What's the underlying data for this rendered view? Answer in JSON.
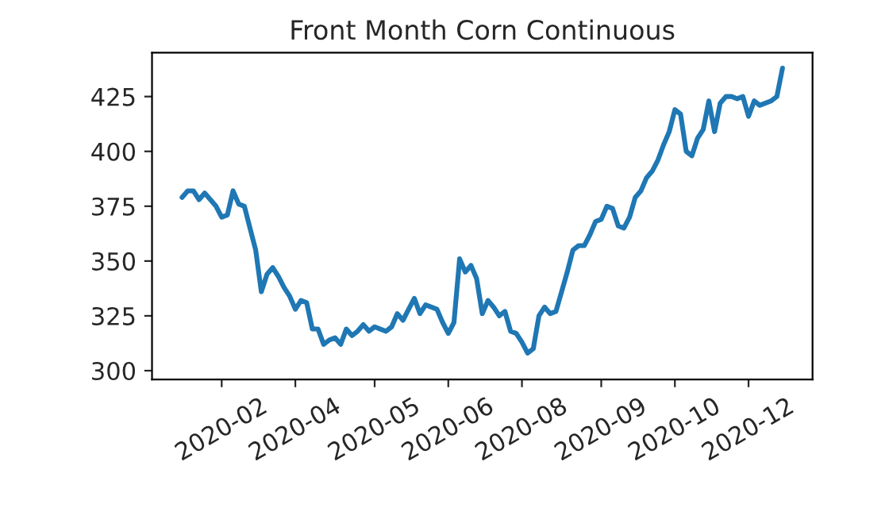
{
  "chart_data": {
    "type": "line",
    "title": "Front Month Corn Continuous",
    "categories": [
      null,
      null,
      null,
      null,
      null,
      null,
      null,
      "2020-02",
      null,
      null,
      null,
      null,
      null,
      null,
      null,
      null,
      null,
      null,
      null,
      null,
      "2020-04",
      null,
      null,
      null,
      null,
      null,
      null,
      null,
      null,
      null,
      null,
      null,
      null,
      null,
      "2020-05",
      null,
      null,
      null,
      null,
      null,
      null,
      null,
      null,
      null,
      null,
      null,
      null,
      "2020-06",
      null,
      null,
      null,
      null,
      null,
      null,
      null,
      null,
      null,
      null,
      null,
      null,
      "2020-08",
      null,
      null,
      null,
      null,
      null,
      null,
      null,
      null,
      null,
      null,
      null,
      null,
      null,
      "2020-09",
      null,
      null,
      null,
      null,
      null,
      null,
      null,
      null,
      null,
      null,
      null,
      null,
      "2020-10",
      null,
      null,
      null,
      null,
      null,
      null,
      null,
      null,
      null,
      null,
      null,
      null,
      "2020-12",
      null,
      null,
      null,
      null,
      null,
      null
    ],
    "series": [
      {
        "color": "#1f77b4",
        "values": [
          379,
          382,
          382,
          378,
          381,
          378,
          375,
          370,
          371,
          382,
          376,
          375,
          365,
          355,
          336,
          344,
          347,
          343,
          338,
          334,
          328,
          332,
          331,
          319,
          319,
          312,
          314,
          315,
          312,
          319,
          316,
          318,
          321,
          318,
          320,
          319,
          318,
          320,
          326,
          323,
          328,
          333,
          326,
          330,
          329,
          328,
          322,
          317,
          322,
          351,
          345,
          348,
          342,
          326,
          332,
          329,
          325,
          327,
          318,
          317,
          313,
          308,
          310,
          325,
          329,
          326,
          327,
          336,
          345,
          355,
          357,
          357,
          362,
          368,
          369,
          375,
          374,
          366,
          365,
          370,
          379,
          382,
          388,
          391,
          396,
          403,
          409,
          419,
          417,
          400,
          398,
          406,
          410,
          423,
          409,
          422,
          425,
          425,
          424,
          425,
          416,
          423,
          421,
          422,
          423,
          425,
          438
        ]
      }
    ],
    "ylim": [
      296,
      445
    ],
    "yticks": [
      300,
      325,
      350,
      375,
      400,
      425
    ],
    "line_style": "solid"
  }
}
